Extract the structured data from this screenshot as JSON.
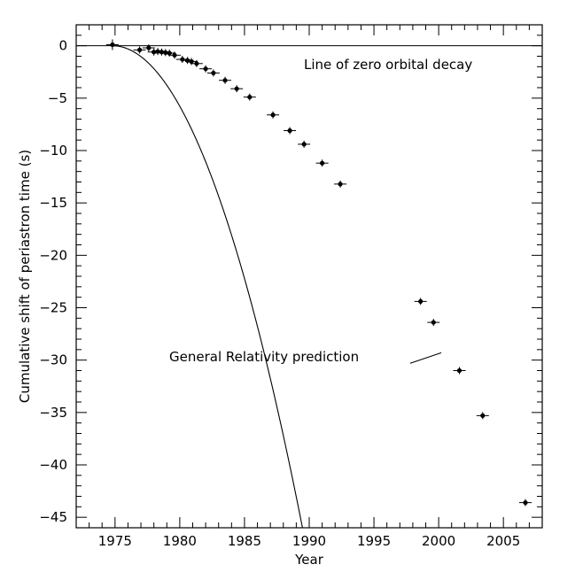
{
  "chart_data": {
    "type": "scatter",
    "xlabel": "Year",
    "ylabel": "Cumulative shift of periastron time (s)",
    "xlim": [
      1972,
      2008
    ],
    "ylim": [
      -46,
      2
    ],
    "x_ticks": [
      1975,
      1980,
      1985,
      1990,
      1995,
      2000,
      2005
    ],
    "y_ticks": [
      0,
      -5,
      -10,
      -15,
      -20,
      -25,
      -30,
      -35,
      -40,
      -45
    ],
    "grid": false,
    "annotations": {
      "zero_line": "Line of zero orbital decay",
      "prediction": "General Relativity prediction"
    },
    "series": [
      {
        "kind": "points_with_error_bars",
        "points": [
          {
            "x": 1974.8,
            "y": 0.1
          },
          {
            "x": 1976.9,
            "y": -0.4
          },
          {
            "x": 1977.6,
            "y": -0.2
          },
          {
            "x": 1978.0,
            "y": -0.6
          },
          {
            "x": 1978.3,
            "y": -0.55
          },
          {
            "x": 1978.6,
            "y": -0.6
          },
          {
            "x": 1978.9,
            "y": -0.65
          },
          {
            "x": 1979.2,
            "y": -0.7
          },
          {
            "x": 1979.6,
            "y": -0.9
          },
          {
            "x": 1980.2,
            "y": -1.3
          },
          {
            "x": 1980.6,
            "y": -1.4
          },
          {
            "x": 1980.9,
            "y": -1.5
          },
          {
            "x": 1981.3,
            "y": -1.7
          },
          {
            "x": 1982.0,
            "y": -2.2
          },
          {
            "x": 1982.6,
            "y": -2.6
          },
          {
            "x": 1983.5,
            "y": -3.3
          },
          {
            "x": 1984.4,
            "y": -4.1
          },
          {
            "x": 1985.4,
            "y": -4.9
          },
          {
            "x": 1987.2,
            "y": -6.6
          },
          {
            "x": 1988.5,
            "y": -8.1
          },
          {
            "x": 1989.6,
            "y": -9.4
          },
          {
            "x": 1991.0,
            "y": -11.2
          },
          {
            "x": 1992.4,
            "y": -13.2
          },
          {
            "x": 1998.6,
            "y": -24.4
          },
          {
            "x": 1999.6,
            "y": -26.4
          },
          {
            "x": 2001.6,
            "y": -31.0
          },
          {
            "x": 2003.4,
            "y": -35.3
          },
          {
            "x": 2006.7,
            "y": -43.6
          }
        ]
      },
      {
        "kind": "curve",
        "model": "quadratic",
        "x0": 1974.8,
        "coefficient": -0.2135,
        "x_end": 2008
      },
      {
        "kind": "zero_line",
        "y": 0
      }
    ]
  }
}
